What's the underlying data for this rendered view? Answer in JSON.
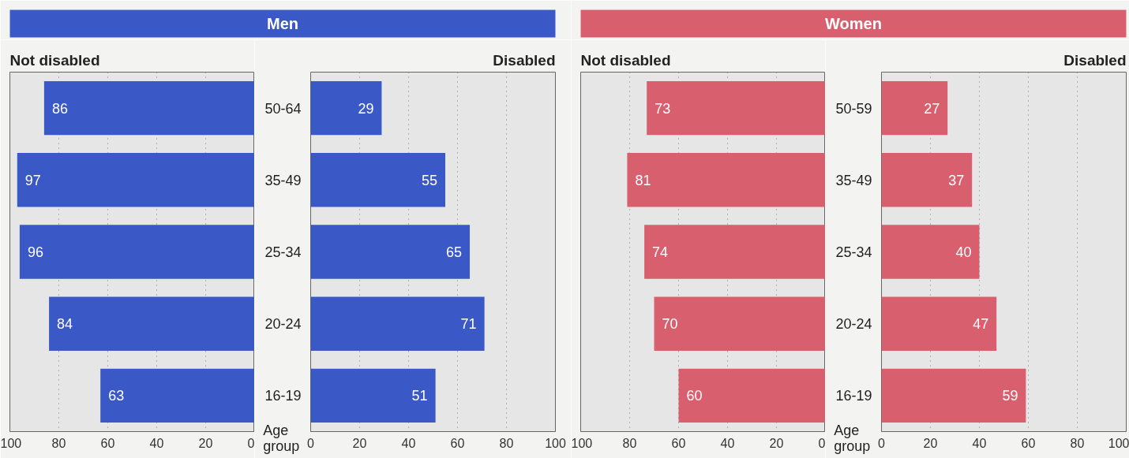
{
  "chart_data": [
    {
      "type": "bar",
      "orientation": "horizontal",
      "subtitle": "Not disabled",
      "categories": [
        null,
        null,
        null,
        null,
        null
      ],
      "series": [
        {
          "color": "#3a58c6",
          "values": [
            86,
            97,
            96,
            84,
            63
          ]
        }
      ],
      "xlim": [
        100,
        0
      ],
      "xticks": [
        0,
        20,
        40,
        60,
        80,
        100
      ],
      "grid": "x",
      "data_labels": true,
      "tick_labels": "x"
    },
    {
      "type": "bar",
      "orientation": "horizontal",
      "title": "Men",
      "subtitle": "Disabled",
      "ylabel": "Age group",
      "categories": [
        "50-64",
        "35-49",
        "25-34",
        "20-24",
        "16-19"
      ],
      "series": [
        {
          "color": "#3a58c6",
          "values": [
            29,
            55,
            65,
            71,
            51
          ]
        }
      ],
      "xlim": [
        0,
        100
      ],
      "xticks": [
        0,
        20,
        40,
        60,
        80,
        100
      ],
      "grid": "x",
      "data_labels": true
    },
    {
      "type": "bar",
      "orientation": "horizontal",
      "subtitle": "Not disabled",
      "categories": [
        null,
        null,
        null,
        null,
        null
      ],
      "series": [
        {
          "color": "#d8606e",
          "values": [
            73,
            81,
            74,
            70,
            60
          ]
        }
      ],
      "xlim": [
        100,
        0
      ],
      "xticks": [
        0,
        20,
        40,
        60,
        80,
        100
      ],
      "grid": "x",
      "data_labels": true,
      "tick_labels": "x"
    },
    {
      "type": "bar",
      "orientation": "horizontal",
      "title": "Women",
      "subtitle": "Disabled",
      "ylabel": "Age group",
      "categories": [
        "50-59",
        "35-49",
        "25-34",
        "20-24",
        "16-19"
      ],
      "series": [
        {
          "color": "#d8606e",
          "values": [
            27,
            37,
            40,
            47,
            59
          ]
        }
      ],
      "xlim": [
        0,
        100
      ],
      "xticks": [
        0,
        20,
        40,
        60,
        80,
        100
      ],
      "grid": "x",
      "data_labels": true
    }
  ]
}
